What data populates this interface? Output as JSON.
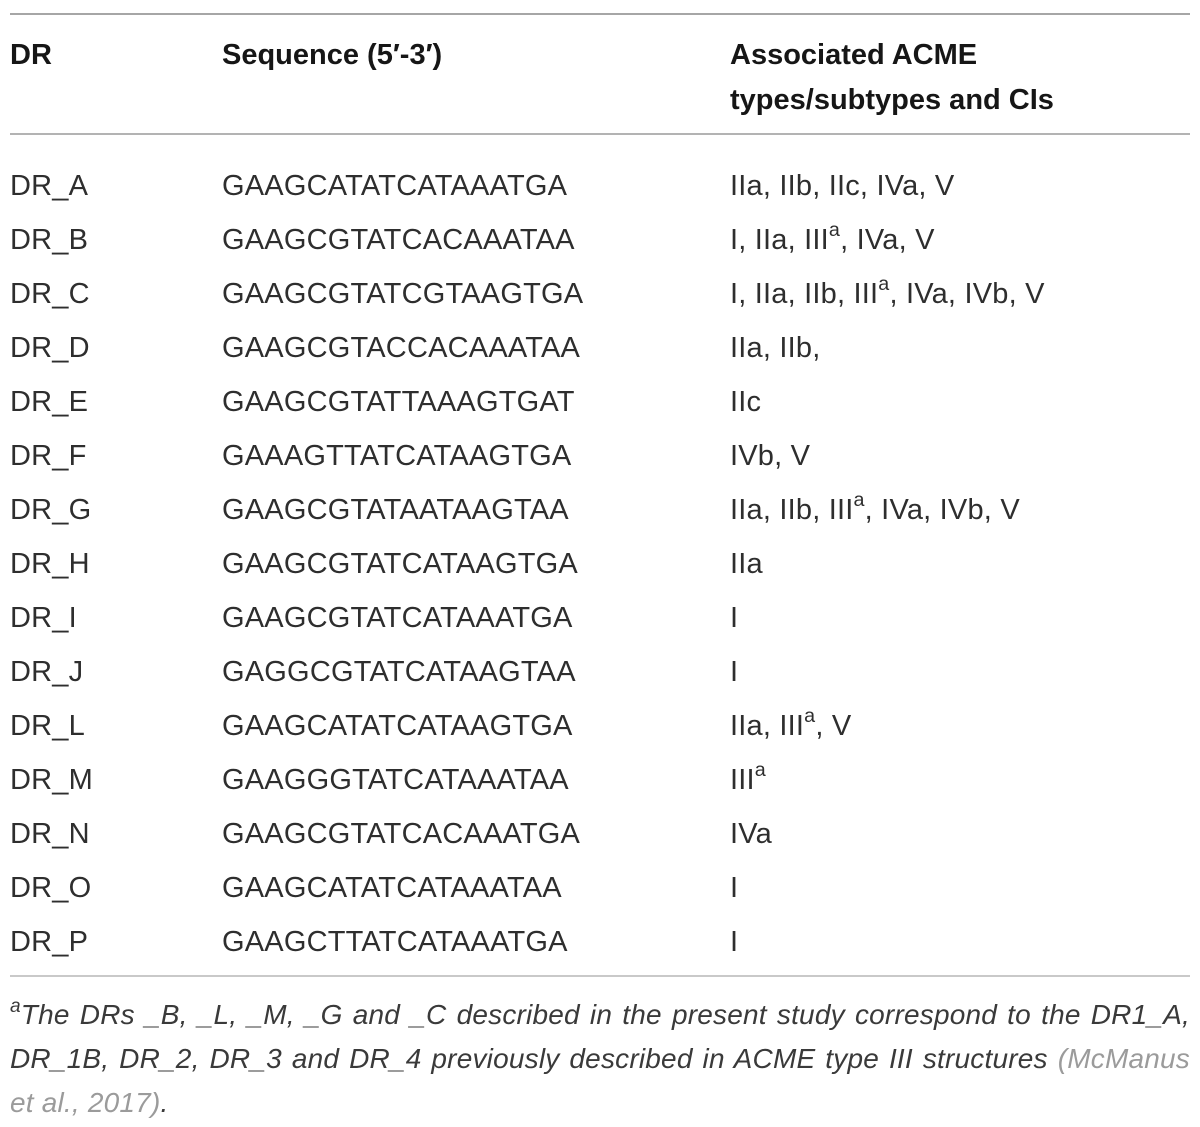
{
  "table": {
    "columns": [
      {
        "label": "DR"
      },
      {
        "label": "Sequence (5′-3′)"
      },
      {
        "label": "Associated ACME types/subtypes and CIs"
      }
    ],
    "rows": [
      {
        "dr": "DR_A",
        "sequence": "GAAGCATATCATAAATGA",
        "acme": "IIa, IIb, IIc, IVa, V"
      },
      {
        "dr": "DR_B",
        "sequence": "GAAGCGTATCACAAATAA",
        "acme": "I, IIa, IIIᵃ, IVa, V"
      },
      {
        "dr": "DR_C",
        "sequence": "GAAGCGTATCGTAAGTGA",
        "acme": "I, IIa, IIb, IIIᵃ, IVa, IVb, V"
      },
      {
        "dr": "DR_D",
        "sequence": "GAAGCGTACCACAAATAA",
        "acme": "IIa, IIb,"
      },
      {
        "dr": "DR_E",
        "sequence": "GAAGCGTATTAAAGTGAT",
        "acme": "IIc"
      },
      {
        "dr": "DR_F",
        "sequence": "GAAAGTTATCATAAGTGA",
        "acme": "IVb, V"
      },
      {
        "dr": "DR_G",
        "sequence": "GAAGCGTATAATAAGTAA",
        "acme": "IIa, IIb, IIIᵃ, IVa, IVb, V"
      },
      {
        "dr": "DR_H",
        "sequence": "GAAGCGTATCATAAGTGA",
        "acme": "IIa"
      },
      {
        "dr": "DR_I",
        "sequence": "GAAGCGTATCATAAATGA",
        "acme": "I"
      },
      {
        "dr": "DR_J",
        "sequence": "GAGGCGTATCATAAGTAA",
        "acme": "I"
      },
      {
        "dr": "DR_L",
        "sequence": "GAAGCATATCATAAGTGA",
        "acme": "IIa, IIIᵃ, V"
      },
      {
        "dr": "DR_M",
        "sequence": "GAAGGGTATCATAAATAA",
        "acme": "IIIᵃ"
      },
      {
        "dr": "DR_N",
        "sequence": "GAAGCGTATCACAAATGA",
        "acme": "IVa"
      },
      {
        "dr": "DR_O",
        "sequence": "GAAGCATATCATAAATAA",
        "acme": "I"
      },
      {
        "dr": "DR_P",
        "sequence": "GAAGCTTATCATAAATGA",
        "acme": "I"
      }
    ]
  },
  "footnote": {
    "marker": "a",
    "body": "The DRs _B, _L, _M, _G and _C described in the present study correspond to the DR1_A, DR_1B, DR_2, DR_3 and DR_4 previously described in ACME type III structures ",
    "citation": "(McManus et al., 2017)",
    "end": "."
  },
  "colors": {
    "body_text": "#2e2e2e",
    "header_text": "#161616",
    "rule_top": "#a6a6a6",
    "rule_header": "#b3b3b3",
    "rule_bottom": "#c9c9c9",
    "citation_gray": "#9b9b9b",
    "background": "#ffffff"
  }
}
